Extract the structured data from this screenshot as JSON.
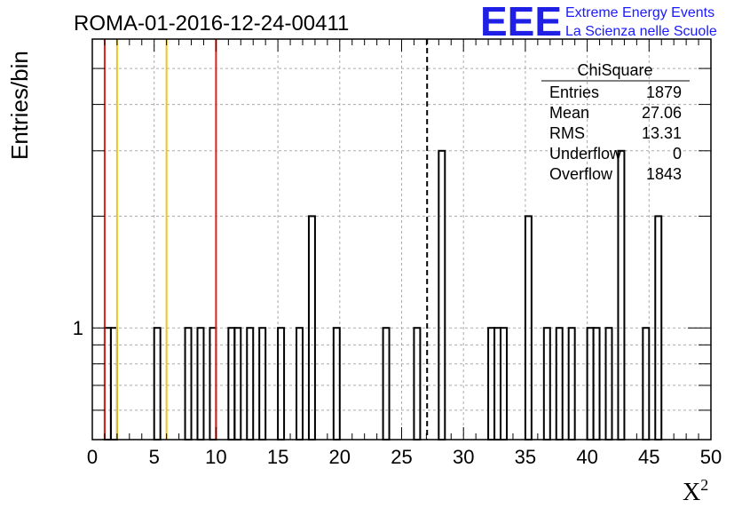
{
  "chart_data": {
    "type": "bar",
    "title": "ROMA-01-2016-12-24-00411",
    "xlabel": "X",
    "xlabel_sup": "2",
    "ylabel": "Entries/bin",
    "xlim": [
      0,
      50
    ],
    "ylim": [
      0.5,
      6
    ],
    "yscale": "log",
    "grid": true,
    "x_ticks": [
      0,
      5,
      10,
      15,
      20,
      25,
      30,
      35,
      40,
      45,
      50
    ],
    "y_tick_labels": [
      {
        "value": 1,
        "label": "1"
      }
    ],
    "bin_width": 0.5,
    "bins": [
      {
        "x": 1.0,
        "value": 1
      },
      {
        "x": 1.5,
        "value": 1
      },
      {
        "x": 5.0,
        "value": 1
      },
      {
        "x": 7.5,
        "value": 1
      },
      {
        "x": 8.5,
        "value": 1
      },
      {
        "x": 9.5,
        "value": 1
      },
      {
        "x": 11.0,
        "value": 1
      },
      {
        "x": 11.5,
        "value": 1
      },
      {
        "x": 12.5,
        "value": 1
      },
      {
        "x": 13.5,
        "value": 1
      },
      {
        "x": 15.0,
        "value": 1
      },
      {
        "x": 16.5,
        "value": 1
      },
      {
        "x": 17.5,
        "value": 2
      },
      {
        "x": 19.5,
        "value": 1
      },
      {
        "x": 23.5,
        "value": 1
      },
      {
        "x": 26.0,
        "value": 1
      },
      {
        "x": 28.0,
        "value": 3
      },
      {
        "x": 32.0,
        "value": 1
      },
      {
        "x": 32.5,
        "value": 1
      },
      {
        "x": 33.0,
        "value": 1
      },
      {
        "x": 35.0,
        "value": 2
      },
      {
        "x": 36.5,
        "value": 1
      },
      {
        "x": 37.5,
        "value": 1
      },
      {
        "x": 38.5,
        "value": 1
      },
      {
        "x": 40.0,
        "value": 1
      },
      {
        "x": 40.5,
        "value": 1
      },
      {
        "x": 41.5,
        "value": 1
      },
      {
        "x": 42.5,
        "value": 3
      },
      {
        "x": 44.5,
        "value": 1
      },
      {
        "x": 45.5,
        "value": 2
      }
    ],
    "vertical_lines": [
      {
        "x": 1,
        "color": "#e0201b",
        "style": "solid"
      },
      {
        "x": 2,
        "color": "#f0c419",
        "style": "solid"
      },
      {
        "x": 6,
        "color": "#f0c419",
        "style": "solid"
      },
      {
        "x": 10,
        "color": "#e0201b",
        "style": "solid"
      },
      {
        "x": 27.06,
        "color": "#000000",
        "style": "dashed"
      }
    ],
    "stats_box": {
      "title": "ChiSquare",
      "rows": [
        {
          "label": "Entries",
          "value": "1879"
        },
        {
          "label": "Mean",
          "value": "27.06"
        },
        {
          "label": "RMS",
          "value": "13.31"
        },
        {
          "label": "Underflow",
          "value": "0"
        },
        {
          "label": "Overflow",
          "value": "1843"
        }
      ]
    }
  },
  "logo": {
    "mark": "EEE",
    "line1": "Extreme Energy Events",
    "line2": "La Scienza nelle Scuole",
    "color": "#1f1fe6"
  }
}
